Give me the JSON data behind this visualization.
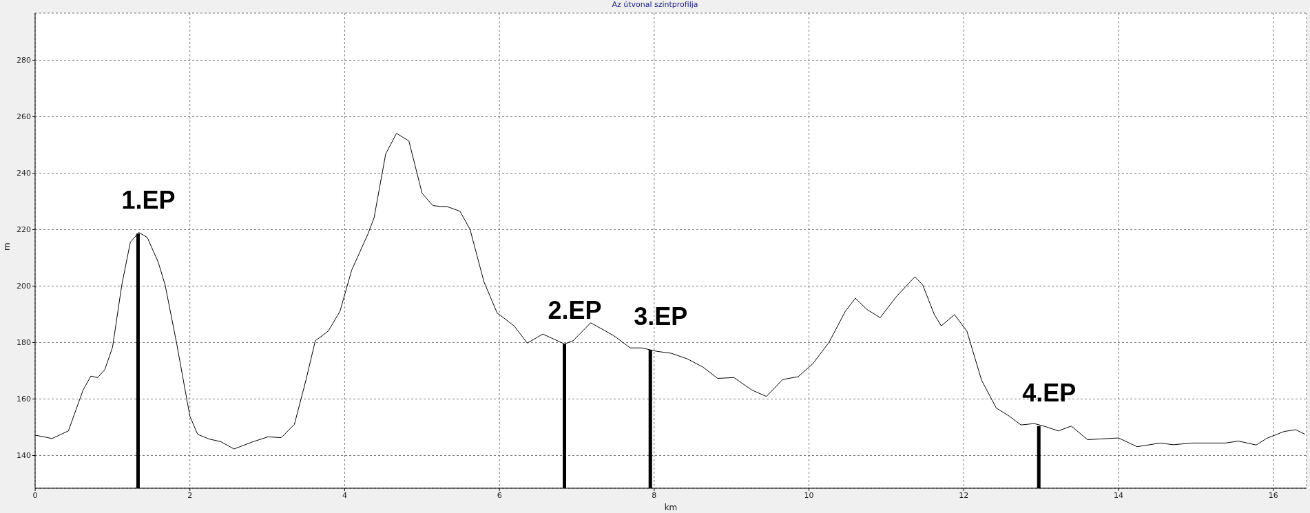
{
  "chart_data": {
    "type": "line",
    "title": "Az útvonal szintprofilja",
    "xlabel": "km",
    "ylabel": "m",
    "x": [
      0,
      0.22,
      0.43,
      0.62,
      0.72,
      0.81,
      0.9,
      1.0,
      1.12,
      1.23,
      1.34,
      1.45,
      1.59,
      1.68,
      1.83,
      2.0,
      2.1,
      2.25,
      2.4,
      2.57,
      2.82,
      3.01,
      3.18,
      3.35,
      3.5,
      3.62,
      3.79,
      3.94,
      4.09,
      4.3,
      4.38,
      4.53,
      4.67,
      4.83,
      5.0,
      5.14,
      5.24,
      5.32,
      5.49,
      5.62,
      5.8,
      5.97,
      6.19,
      6.36,
      6.56,
      6.84,
      6.95,
      7.18,
      7.48,
      7.69,
      7.84,
      8.03,
      8.22,
      8.43,
      8.63,
      8.82,
      9.03,
      9.26,
      9.45,
      9.66,
      9.86,
      10.05,
      10.26,
      10.47,
      10.6,
      10.75,
      10.92,
      11.13,
      11.37,
      11.47,
      11.62,
      11.71,
      11.88,
      12.04,
      12.23,
      12.42,
      12.59,
      12.74,
      12.91,
      13.06,
      13.22,
      13.39,
      13.6,
      14.0,
      14.24,
      14.54,
      14.71,
      14.95,
      15.38,
      15.55,
      15.78,
      15.91,
      16.14,
      16.29,
      16.41
    ],
    "values": [
      147.2,
      146,
      148.7,
      163.2,
      168.1,
      167.6,
      170.4,
      178.3,
      200.4,
      215.5,
      219,
      217.2,
      208.5,
      200.4,
      179.5,
      153.9,
      147.5,
      145.8,
      144.9,
      142.3,
      144.9,
      146.6,
      146.3,
      151,
      166.7,
      180.6,
      184.1,
      191.1,
      205.6,
      218.4,
      224.2,
      246.8,
      254.1,
      251.4,
      232.9,
      228.5,
      228.2,
      228.2,
      226.5,
      220.1,
      201.5,
      190.5,
      185.9,
      179.8,
      183,
      179.5,
      180.6,
      187,
      182.4,
      178.1,
      178.1,
      176.9,
      176.2,
      174.2,
      171.3,
      167.3,
      167.6,
      163.2,
      160.9,
      166.9,
      167.9,
      172.5,
      180.1,
      191.1,
      195.7,
      191.7,
      188.8,
      196.3,
      203.3,
      200.4,
      189.9,
      185.9,
      189.9,
      184.1,
      166.7,
      156.8,
      153.9,
      150.8,
      151.3,
      150.2,
      148.7,
      150.4,
      145.6,
      146.2,
      143.1,
      144.4,
      143.8,
      144.4,
      144.4,
      145.1,
      143.7,
      146,
      148.5,
      149.1,
      147.5
    ],
    "color": "#000000",
    "marker": "none",
    "line_style": "solid",
    "xlim": [
      0,
      16.43
    ],
    "ylim": [
      128.4,
      296.7
    ],
    "xticks": [
      0,
      2,
      4,
      6,
      8,
      10,
      12,
      14,
      16
    ],
    "yticks": [
      140,
      160,
      180,
      200,
      220,
      240,
      260,
      280
    ],
    "grid": true,
    "annotations": [
      {
        "text": "1.EP",
        "x": 1.33,
        "y": 218.6
      },
      {
        "text": "2.EP",
        "x": 6.84,
        "y": 179.5
      },
      {
        "text": "3.EP",
        "x": 7.95,
        "y": 177.4
      },
      {
        "text": "4.EP",
        "x": 12.97,
        "y": 150.4
      }
    ]
  }
}
